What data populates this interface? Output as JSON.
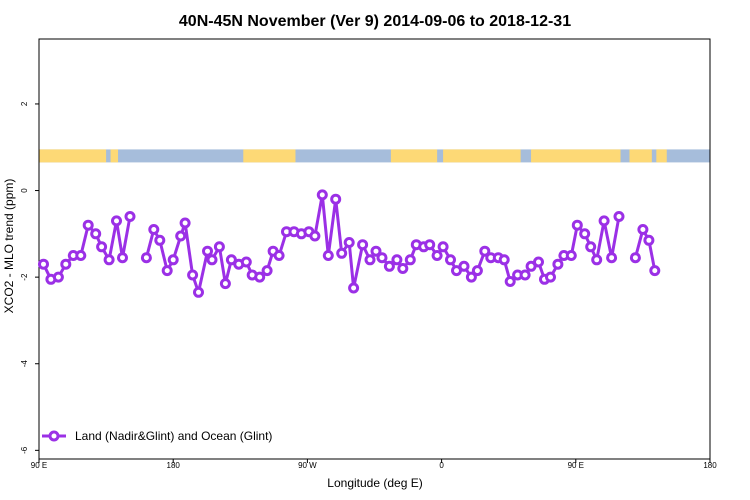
{
  "chart_data": {
    "type": "line",
    "title": "40N-45N November (Ver 9)   2014-09-06 to 2018-12-31",
    "xlabel": "Longitude (deg E)",
    "ylabel": "XCO2 - MLO trend (ppm)",
    "xlim": [
      90,
      540
    ],
    "ylim": [
      -6.2,
      3.5
    ],
    "x_ticks": [
      {
        "value": 90,
        "label": "90 E"
      },
      {
        "value": 180,
        "label": "180"
      },
      {
        "value": 270,
        "label": "90 W"
      },
      {
        "value": 360,
        "label": "0"
      },
      {
        "value": 450,
        "label": "90 E"
      },
      {
        "value": 540,
        "label": "180"
      }
    ],
    "y_ticks": [
      {
        "value": 2,
        "label": "2"
      },
      {
        "value": 0,
        "label": "0"
      },
      {
        "value": -2,
        "label": "-2"
      },
      {
        "value": -4,
        "label": "-4"
      },
      {
        "value": -6,
        "label": "-6"
      }
    ],
    "land_ocean_band": {
      "y_range": [
        0.65,
        0.95
      ],
      "ocean_color": "#a6bddb",
      "land_color": "#fdd976",
      "land_segments": [
        [
          90,
          135
        ],
        [
          138,
          143
        ],
        [
          227,
          262
        ],
        [
          326,
          357
        ],
        [
          361,
          413
        ],
        [
          420,
          480
        ],
        [
          486,
          501
        ],
        [
          504,
          511
        ]
      ]
    },
    "series": [
      {
        "name": "Land (Nadir&Glint) and Ocean (Glint)",
        "color": "#9b30e6",
        "segments": [
          [
            [
              93,
              -1.7
            ],
            [
              98,
              -2.05
            ],
            [
              103,
              -2.0
            ],
            [
              108,
              -1.7
            ],
            [
              113,
              -1.5
            ],
            [
              118,
              -1.5
            ],
            [
              123,
              -0.8
            ],
            [
              128,
              -1.0
            ],
            [
              132,
              -1.3
            ],
            [
              137,
              -1.6
            ],
            [
              142,
              -0.7
            ],
            [
              146,
              -1.55
            ],
            [
              151,
              -0.6
            ]
          ],
          [
            [
              162,
              -1.55
            ],
            [
              167,
              -0.9
            ],
            [
              171,
              -1.15
            ],
            [
              176,
              -1.85
            ],
            [
              180,
              -1.6
            ],
            [
              185,
              -1.05
            ],
            [
              188,
              -0.75
            ],
            [
              193,
              -1.95
            ],
            [
              197,
              -2.35
            ],
            [
              203,
              -1.4
            ],
            [
              206,
              -1.6
            ],
            [
              211,
              -1.3
            ],
            [
              215,
              -2.15
            ],
            [
              219,
              -1.6
            ],
            [
              224,
              -1.7
            ],
            [
              229,
              -1.65
            ],
            [
              233,
              -1.95
            ],
            [
              238,
              -2.0
            ],
            [
              243,
              -1.85
            ],
            [
              247,
              -1.4
            ],
            [
              251,
              -1.5
            ],
            [
              256,
              -0.95
            ],
            [
              261,
              -0.95
            ],
            [
              266,
              -1.0
            ],
            [
              271,
              -0.95
            ],
            [
              275,
              -1.05
            ],
            [
              280,
              -0.1
            ],
            [
              284,
              -1.5
            ],
            [
              289,
              -0.2
            ],
            [
              293,
              -1.45
            ],
            [
              298,
              -1.2
            ],
            [
              301,
              -2.25
            ],
            [
              307,
              -1.25
            ],
            [
              312,
              -1.6
            ],
            [
              316,
              -1.4
            ],
            [
              320,
              -1.55
            ],
            [
              325,
              -1.75
            ],
            [
              330,
              -1.6
            ],
            [
              334,
              -1.8
            ],
            [
              339,
              -1.6
            ],
            [
              343,
              -1.25
            ],
            [
              348,
              -1.3
            ],
            [
              352,
              -1.25
            ],
            [
              357,
              -1.5
            ],
            [
              361,
              -1.3
            ],
            [
              366,
              -1.6
            ],
            [
              370,
              -1.85
            ],
            [
              375,
              -1.75
            ],
            [
              380,
              -2.0
            ],
            [
              384,
              -1.85
            ],
            [
              389,
              -1.4
            ],
            [
              393,
              -1.55
            ],
            [
              398,
              -1.55
            ],
            [
              402,
              -1.6
            ],
            [
              406,
              -2.1
            ],
            [
              411,
              -1.95
            ],
            [
              416,
              -1.95
            ],
            [
              420,
              -1.75
            ],
            [
              425,
              -1.65
            ],
            [
              429,
              -2.05
            ],
            [
              433,
              -2.0
            ],
            [
              438,
              -1.7
            ],
            [
              442,
              -1.5
            ],
            [
              447,
              -1.5
            ],
            [
              451,
              -0.8
            ],
            [
              456,
              -1.0
            ],
            [
              460,
              -1.3
            ],
            [
              464,
              -1.6
            ],
            [
              469,
              -0.7
            ],
            [
              474,
              -1.55
            ],
            [
              479,
              -0.6
            ]
          ],
          [
            [
              490,
              -1.55
            ],
            [
              495,
              -0.9
            ],
            [
              499,
              -1.15
            ],
            [
              503,
              -1.85
            ]
          ]
        ]
      }
    ],
    "legend": {
      "position": "bottom-left",
      "entries": [
        "Land (Nadir&Glint) and Ocean (Glint)"
      ]
    },
    "grid": false
  }
}
